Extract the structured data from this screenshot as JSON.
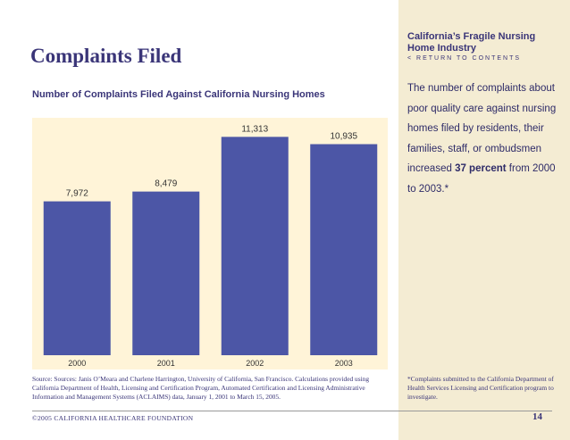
{
  "page": {
    "heading": "Complaints Filed",
    "source": "Source: Sources: Janis O’Meara and Charlene Harrington, University of California, San Francisco. Calculations provided using California Department of Health, Licensing and Certification Program, Automated Certification and Licensing Administrative Information and Management Systems (ACLAIMS) data, January 1, 2001 to March 15, 2005.",
    "copyright": "©2005 CALIFORNIA HEALTHCARE FOUNDATION",
    "page_number": "14"
  },
  "sidebar": {
    "report_title": "California’s Fragile Nursing Home Industry",
    "return_link": "< RETURN TO CONTENTS",
    "text_before": "The number of complaints about poor quality care against nursing homes filed by residents, their families, staff, or ombudsmen increased ",
    "text_emphasis": "37 percent",
    "text_after": " from 2000 to 2003.*",
    "footnote": "*Complaints submitted to the California Department of Health Services Licensing and Certification program to investigate."
  },
  "chart_data": {
    "type": "bar",
    "title": "Number of Complaints Filed Against California Nursing Homes",
    "categories": [
      "2000",
      "2001",
      "2002",
      "2003"
    ],
    "values": [
      7972,
      8479,
      11313,
      10935
    ],
    "value_labels": [
      "7,972",
      "8,479",
      "11,313",
      "10,935"
    ],
    "ylim": [
      0,
      12300
    ],
    "grid": false,
    "legend": "none",
    "bar_color": "#4c56a6",
    "background_color": "#fff4d8"
  }
}
